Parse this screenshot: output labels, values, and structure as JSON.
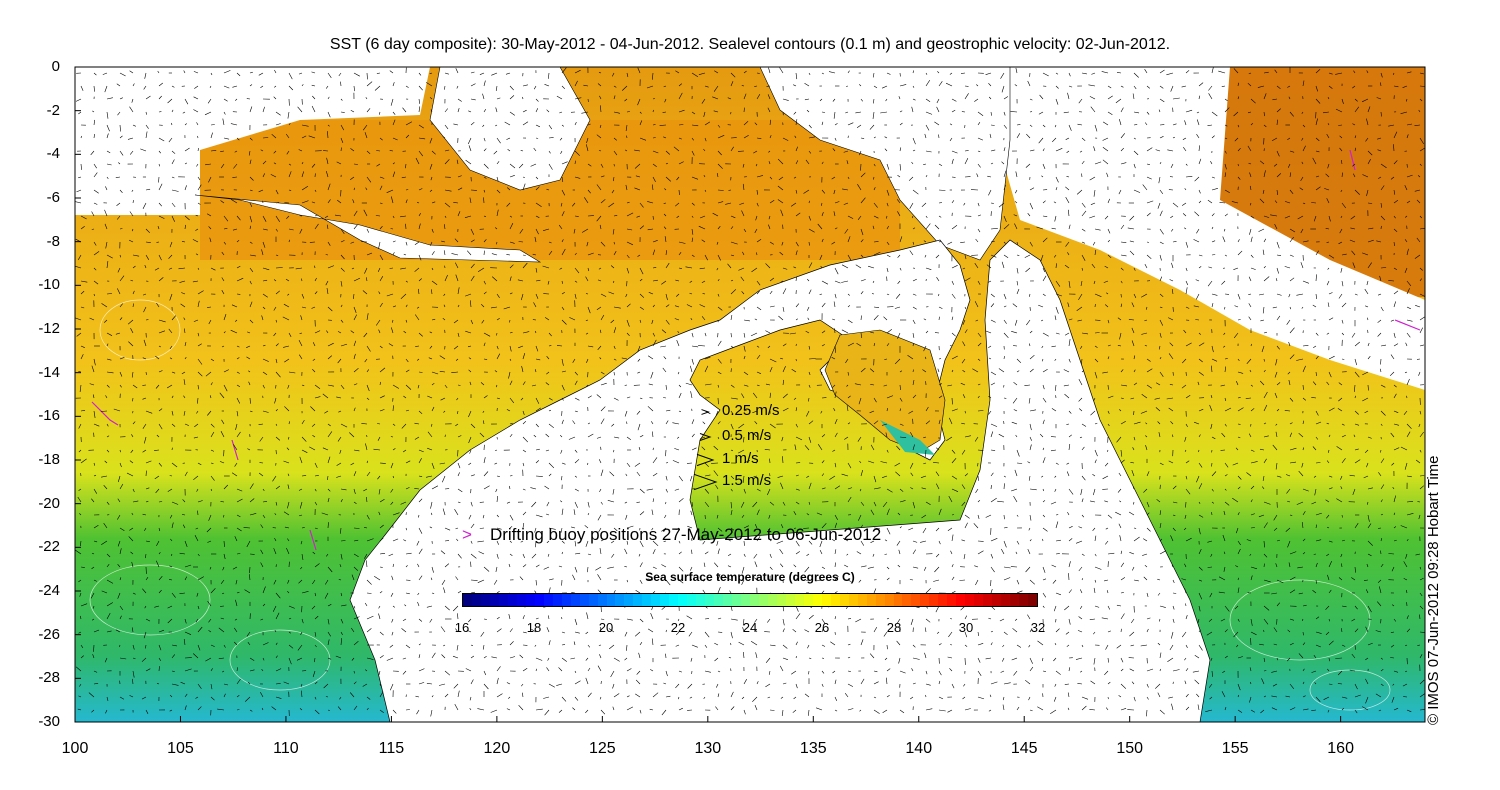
{
  "title": "SST (6 day composite): 30-May-2012 - 04-Jun-2012. Sealevel contours (0.1 m) and geostrophic velocity: 02-Jun-2012.",
  "credit": "© IMOS 07-Jun-2012 09:28 Hobart Time",
  "axes": {
    "x_ticks": [
      "100",
      "105",
      "110",
      "115",
      "120",
      "125",
      "130",
      "135",
      "140",
      "145",
      "150",
      "155",
      "160"
    ],
    "y_ticks": [
      "0",
      "-2",
      "-4",
      "-6",
      "-8",
      "-10",
      "-12",
      "-14",
      "-16",
      "-18",
      "-20",
      "-22",
      "-24",
      "-26",
      "-28",
      "-30"
    ],
    "xlim": [
      100,
      164
    ],
    "ylim": [
      -30,
      0
    ]
  },
  "speed_legend": [
    {
      "label": "0.25 m/s",
      "speed": 0.25
    },
    {
      "label": "0.5 m/s",
      "speed": 0.5
    },
    {
      "label": "1 m/s",
      "speed": 1
    },
    {
      "label": "1.5 m/s",
      "speed": 1.5
    }
  ],
  "buoy_legend": "Drifting buoy positions 27-May-2012 to 06-Jun-2012",
  "colorbar": {
    "title": "Sea surface temperature (degrees C)",
    "min": 16,
    "max": 32,
    "ticks": [
      "16",
      "18",
      "20",
      "22",
      "24",
      "26",
      "28",
      "30",
      "32"
    ]
  },
  "colors": {
    "land": "#ffffff",
    "buoy": "#d020d0",
    "cloud": "#ffffff"
  }
}
